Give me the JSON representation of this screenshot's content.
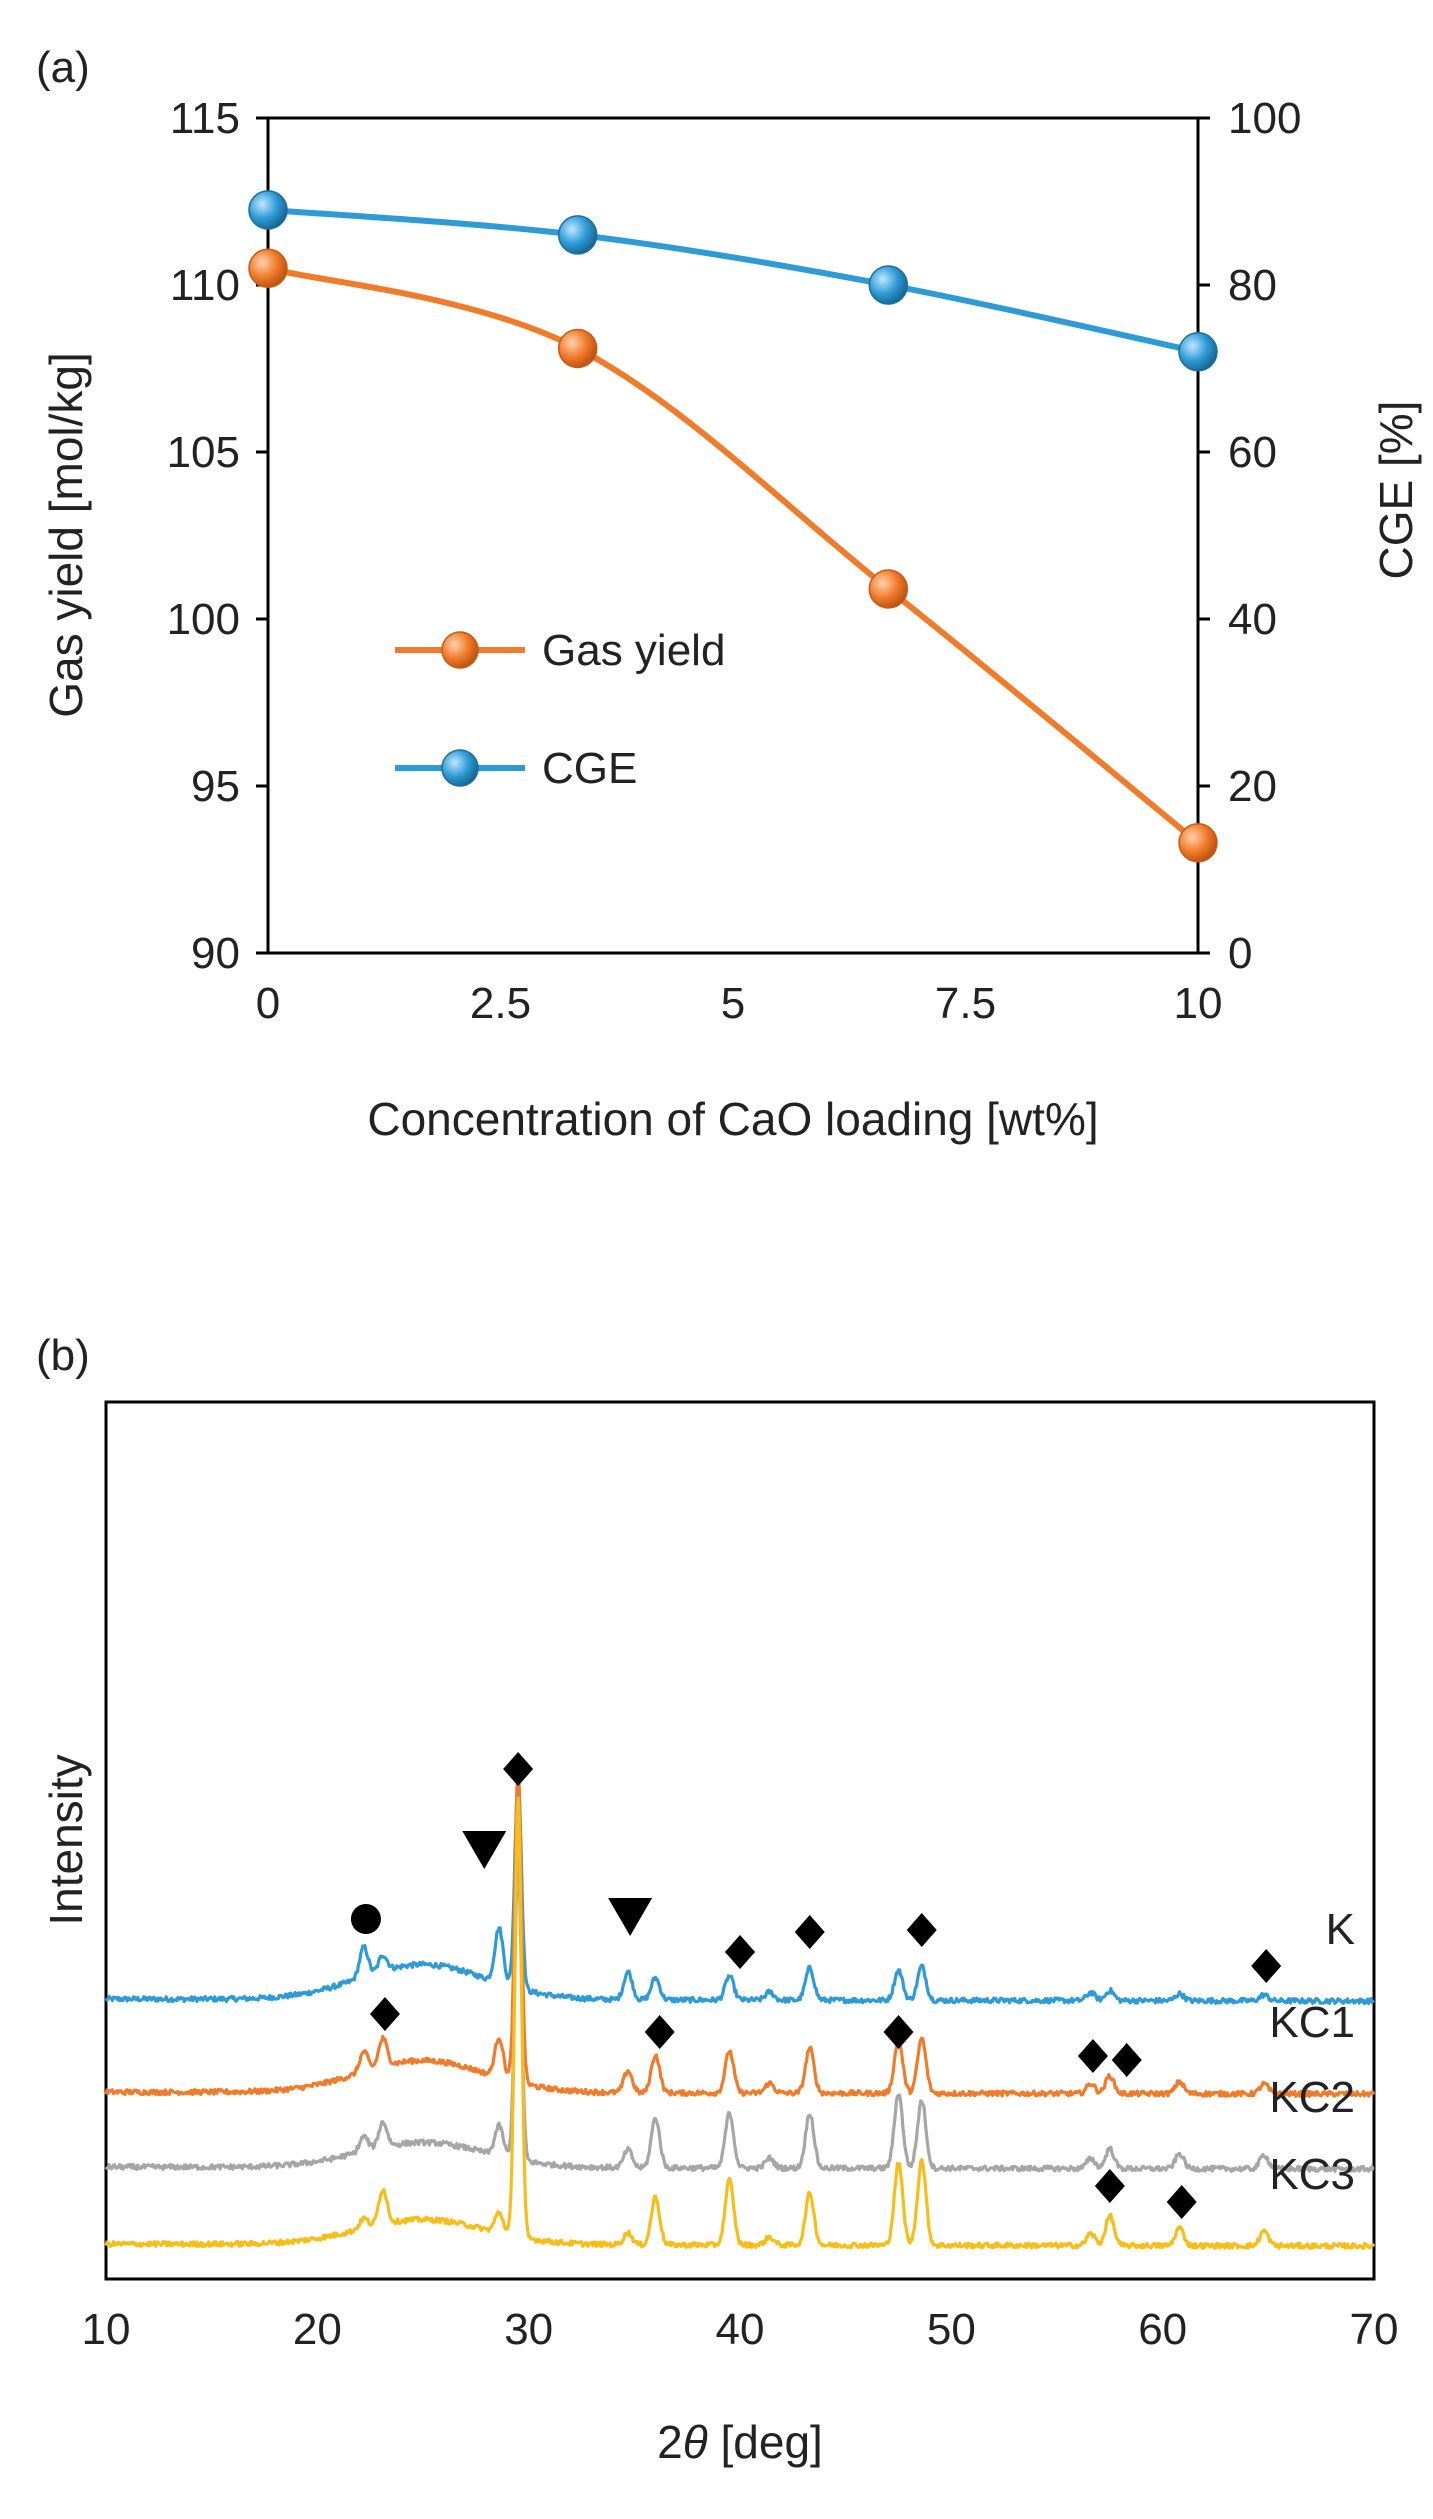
{
  "panel_labels": {
    "a": "(a)",
    "b": "(b)"
  },
  "colors": {
    "gas_yield": "#F07B2A",
    "cge": "#2E9BD6",
    "K": "#2E9BD6",
    "KC1": "#F07B2A",
    "KC2": "#A6A6A6",
    "KC3": "#F7BE1A",
    "axis": "#000000",
    "marker": "#000000"
  },
  "chart_data": [
    {
      "type": "line",
      "title": "",
      "panel": "(a)",
      "xlabel": "Concentration of CaO loading [wt%]",
      "ylabel": "Gas yield [mol/kg]",
      "y2label": "CGE [%]",
      "xlim": [
        0,
        10
      ],
      "ylim": [
        90,
        115
      ],
      "y2lim": [
        0,
        100
      ],
      "xticks": [
        "0",
        "2.5",
        "5",
        "7.5",
        "10"
      ],
      "xtick_values": [
        0,
        2.5,
        5,
        7.5,
        10
      ],
      "yticks": [
        "90",
        "95",
        "100",
        "105",
        "110",
        "115"
      ],
      "ytick_values": [
        90,
        95,
        100,
        105,
        110,
        115
      ],
      "y2ticks": [
        "0",
        "20",
        "40",
        "60",
        "80",
        "100"
      ],
      "y2tick_values": [
        0,
        20,
        40,
        60,
        80,
        100
      ],
      "grid": false,
      "legend_position": "lower-left",
      "x": [
        0,
        3.33,
        6.67,
        10
      ],
      "series": [
        {
          "name": "Gas yield",
          "axis": "left",
          "values": [
            110.5,
            108.1,
            100.9,
            93.3
          ]
        },
        {
          "name": "CGE",
          "axis": "right",
          "values": [
            89,
            86,
            80,
            72
          ]
        }
      ]
    },
    {
      "type": "line",
      "title": "",
      "panel": "(b)",
      "xlabel": "2θ [deg]",
      "xlabel_prefix": "2",
      "xlabel_symbol": "θ",
      "xlabel_suffix": " [deg]",
      "ylabel": "Intensity",
      "xlim": [
        10,
        70
      ],
      "xticks": [
        "10",
        "20",
        "30",
        "40",
        "50",
        "60",
        "70"
      ],
      "xtick_values": [
        10,
        20,
        30,
        40,
        50,
        60,
        70
      ],
      "grid": false,
      "series": [
        {
          "name": "K",
          "baseline": 2.55,
          "hump": 0.35,
          "tilt": 0.02,
          "peaks": [
            [
              22.2,
              0.3
            ],
            [
              23.1,
              0.16
            ],
            [
              28.6,
              0.55
            ],
            [
              29.5,
              2.1
            ],
            [
              34.7,
              0.28
            ],
            [
              36.0,
              0.22
            ],
            [
              39.5,
              0.24
            ],
            [
              41.4,
              0.08
            ],
            [
              43.3,
              0.32
            ],
            [
              47.5,
              0.3
            ],
            [
              48.6,
              0.34
            ],
            [
              56.6,
              0.08
            ],
            [
              57.5,
              0.1
            ],
            [
              60.8,
              0.07
            ],
            [
              64.8,
              0.06
            ]
          ]
        },
        {
          "name": "KC1",
          "baseline": 1.62,
          "hump": 0.32,
          "tilt": 0.02,
          "peaks": [
            [
              22.2,
              0.2
            ],
            [
              23.1,
              0.28
            ],
            [
              28.6,
              0.4
            ],
            [
              29.5,
              3.1
            ],
            [
              34.7,
              0.22
            ],
            [
              36.0,
              0.38
            ],
            [
              39.5,
              0.42
            ],
            [
              41.4,
              0.1
            ],
            [
              43.3,
              0.45
            ],
            [
              47.5,
              0.52
            ],
            [
              48.6,
              0.55
            ],
            [
              56.6,
              0.1
            ],
            [
              57.5,
              0.18
            ],
            [
              60.8,
              0.12
            ],
            [
              64.8,
              0.1
            ]
          ]
        },
        {
          "name": "KC2",
          "baseline": 0.87,
          "hump": 0.25,
          "tilt": 0.02,
          "peaks": [
            [
              22.2,
              0.15
            ],
            [
              23.1,
              0.25
            ],
            [
              28.6,
              0.3
            ],
            [
              29.5,
              3.0
            ],
            [
              34.7,
              0.18
            ],
            [
              36.0,
              0.5
            ],
            [
              39.5,
              0.55
            ],
            [
              41.4,
              0.1
            ],
            [
              43.3,
              0.55
            ],
            [
              47.5,
              0.75
            ],
            [
              48.6,
              0.68
            ],
            [
              56.6,
              0.1
            ],
            [
              57.5,
              0.2
            ],
            [
              60.8,
              0.15
            ],
            [
              64.8,
              0.14
            ]
          ]
        },
        {
          "name": "KC3",
          "baseline": 0.1,
          "hump": 0.25,
          "tilt": 0.02,
          "peaks": [
            [
              22.2,
              0.1
            ],
            [
              23.1,
              0.35
            ],
            [
              28.6,
              0.2
            ],
            [
              29.5,
              4.4
            ],
            [
              34.7,
              0.12
            ],
            [
              36.0,
              0.48
            ],
            [
              39.5,
              0.65
            ],
            [
              41.4,
              0.08
            ],
            [
              43.3,
              0.52
            ],
            [
              47.5,
              0.82
            ],
            [
              48.6,
              0.85
            ],
            [
              56.6,
              0.12
            ],
            [
              57.5,
              0.3
            ],
            [
              60.8,
              0.18
            ],
            [
              64.8,
              0.15
            ]
          ]
        }
      ],
      "series_labels": [
        "K",
        "KC1",
        "KC2",
        "KC3"
      ],
      "annotations": [
        {
          "symbol": "●",
          "kind": "circle",
          "x": 22.3,
          "level": 3.35
        },
        {
          "symbol": "▼",
          "kind": "triangle",
          "x": 27.9,
          "level": 4.05
        },
        {
          "symbol": "◆",
          "kind": "diamond",
          "x": 29.5,
          "level": 4.85
        },
        {
          "symbol": "▼",
          "kind": "triangle",
          "x": 34.8,
          "level": 3.38
        },
        {
          "symbol": "◆",
          "kind": "diamond",
          "x": 40.0,
          "level": 3.02
        },
        {
          "symbol": "◆",
          "kind": "diamond",
          "x": 43.3,
          "level": 3.22
        },
        {
          "symbol": "◆",
          "kind": "diamond",
          "x": 48.6,
          "level": 3.24
        },
        {
          "symbol": "◆",
          "kind": "diamond",
          "x": 64.9,
          "level": 2.88
        },
        {
          "symbol": "◆",
          "kind": "diamond",
          "x": 23.2,
          "level": 2.4
        },
        {
          "symbol": "◆",
          "kind": "diamond",
          "x": 36.2,
          "level": 2.22
        },
        {
          "symbol": "◆",
          "kind": "diamond",
          "x": 47.5,
          "level": 2.22
        },
        {
          "symbol": "◆",
          "kind": "diamond",
          "x": 56.7,
          "level": 1.98
        },
        {
          "symbol": "◆",
          "kind": "diamond",
          "x": 58.3,
          "level": 1.94
        },
        {
          "symbol": "◆",
          "kind": "diamond",
          "x": 57.5,
          "level": 0.68
        },
        {
          "symbol": "◆",
          "kind": "diamond",
          "x": 60.9,
          "level": 0.52
        }
      ]
    }
  ]
}
